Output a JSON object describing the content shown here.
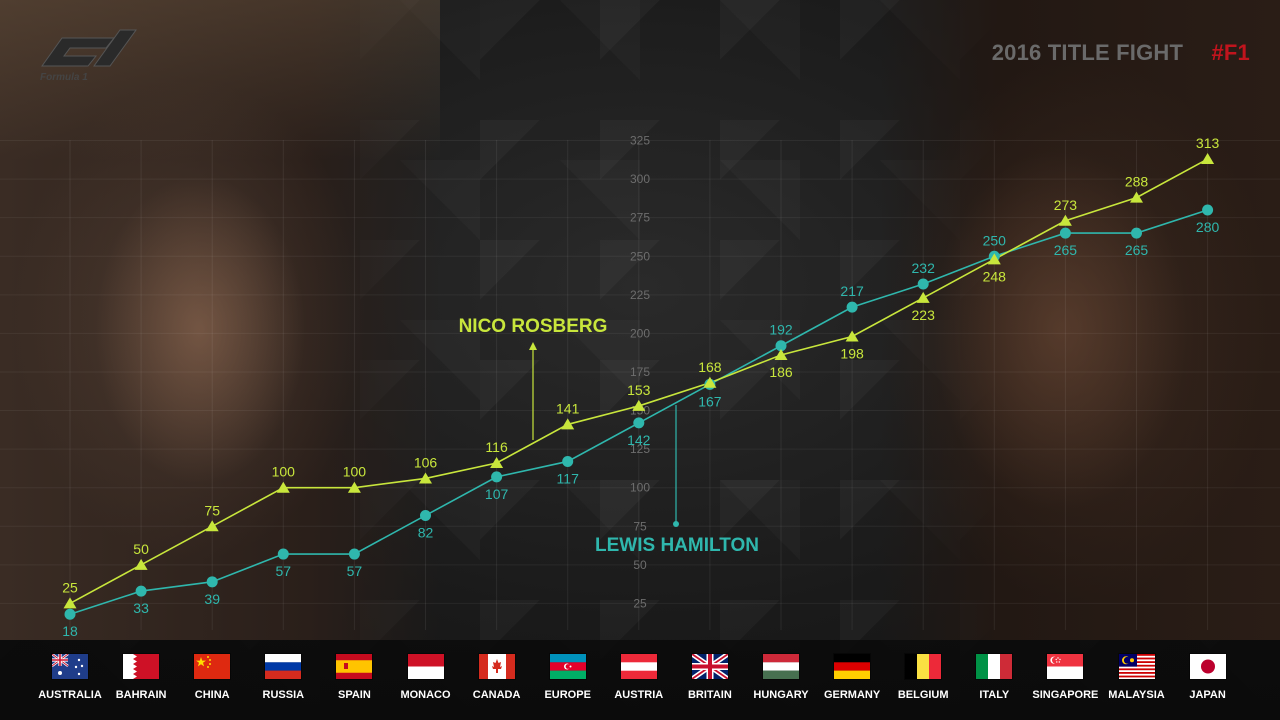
{
  "header": {
    "title": "2016 TITLE FIGHT",
    "hashtag": "#F1",
    "logo_text": "Formula 1"
  },
  "colors": {
    "rosberg": "#c8e63c",
    "hamilton": "#2fb7ad",
    "background": "#141414",
    "hashtag": "#c1141d"
  },
  "chart_data": {
    "type": "line",
    "categories": [
      "AUSTRALIA",
      "BAHRAIN",
      "CHINA",
      "RUSSIA",
      "SPAIN",
      "MONACO",
      "CANADA",
      "EUROPE",
      "AUSTRIA",
      "BRITAIN",
      "HUNGARY",
      "GERMANY",
      "BELGIUM",
      "ITALY",
      "SINGAPORE",
      "MALAYSIA",
      "JAPAN"
    ],
    "series": [
      {
        "name": "NICO ROSBERG",
        "marker": "triangle",
        "color": "#c8e63c",
        "values": [
          25,
          50,
          75,
          100,
          100,
          106,
          116,
          141,
          153,
          168,
          186,
          198,
          223,
          248,
          273,
          288,
          313
        ]
      },
      {
        "name": "LEWIS HAMILTON",
        "marker": "circle",
        "color": "#2fb7ad",
        "values": [
          18,
          33,
          39,
          57,
          57,
          82,
          107,
          117,
          142,
          167,
          192,
          217,
          232,
          250,
          265,
          265,
          280
        ]
      }
    ],
    "yticks": [
      25,
      50,
      75,
      100,
      125,
      150,
      175,
      200,
      225,
      250,
      275,
      300,
      325
    ],
    "ylim": [
      0,
      325
    ],
    "grid": true,
    "legend": "inline-labels"
  },
  "flags": [
    {
      "country": "AUSTRALIA",
      "icon": "australia-flag"
    },
    {
      "country": "BAHRAIN",
      "icon": "bahrain-flag"
    },
    {
      "country": "CHINA",
      "icon": "china-flag"
    },
    {
      "country": "RUSSIA",
      "icon": "russia-flag"
    },
    {
      "country": "SPAIN",
      "icon": "spain-flag"
    },
    {
      "country": "MONACO",
      "icon": "monaco-flag"
    },
    {
      "country": "CANADA",
      "icon": "canada-flag"
    },
    {
      "country": "EUROPE",
      "icon": "azerbaijan-flag"
    },
    {
      "country": "AUSTRIA",
      "icon": "austria-flag"
    },
    {
      "country": "BRITAIN",
      "icon": "uk-flag"
    },
    {
      "country": "HUNGARY",
      "icon": "hungary-flag"
    },
    {
      "country": "GERMANY",
      "icon": "germany-flag"
    },
    {
      "country": "BELGIUM",
      "icon": "belgium-flag"
    },
    {
      "country": "ITALY",
      "icon": "italy-flag"
    },
    {
      "country": "SINGAPORE",
      "icon": "singapore-flag"
    },
    {
      "country": "MALAYSIA",
      "icon": "malaysia-flag"
    },
    {
      "country": "JAPAN",
      "icon": "japan-flag"
    }
  ]
}
